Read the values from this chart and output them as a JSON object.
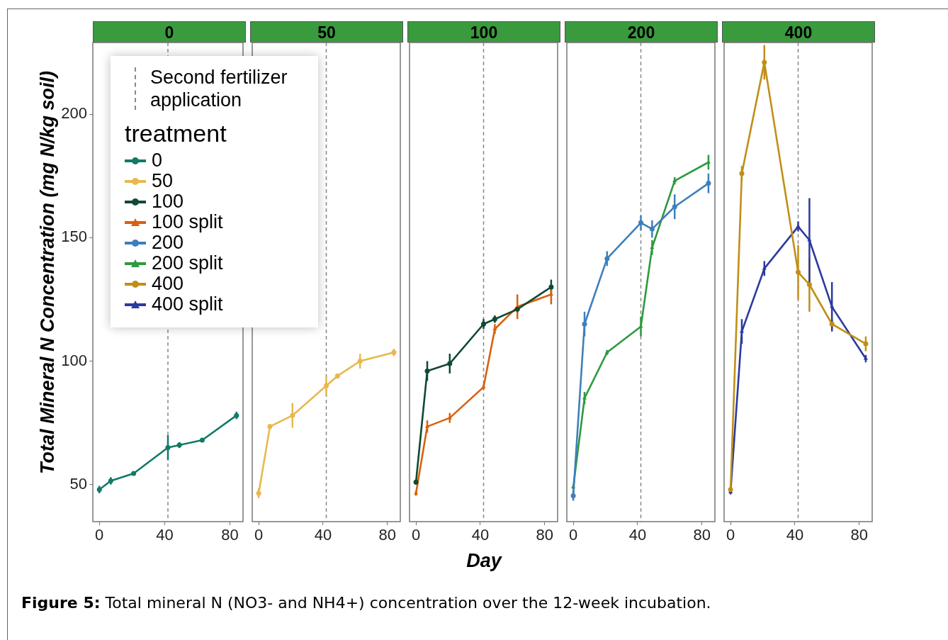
{
  "chart_data": [
    {
      "type": "line",
      "title": "0",
      "ylabel": "Total Mineral N Concentration (mg N/kg soil)",
      "legend_title": "treatment",
      "legend": "top left",
      "x": [
        0,
        7,
        21,
        42,
        49,
        63,
        84
      ],
      "xlim": [
        -4,
        88
      ],
      "xticks": [
        0,
        40,
        80
      ],
      "ylim": [
        35,
        229
      ],
      "yticks": [
        50,
        100,
        150,
        200
      ],
      "grid": false,
      "series": [
        {
          "name": "0",
          "color": "#127a68",
          "marker": "circle",
          "values": [
            48,
            51.5,
            54.5,
            65,
            66,
            68,
            78
          ],
          "errors": [
            1.5,
            1.5,
            0.8,
            5,
            1.2,
            0.8,
            1.5
          ]
        }
      ],
      "ref_lines": [
        {
          "axis": "x",
          "value": 42,
          "label": "Second fertilizer application",
          "line_style": "dashed",
          "color": "#888888"
        }
      ],
      "annotations": [
        "Figure 5: Total mineral N (NO3- and NH4+) concentration over the 12-week incubation."
      ]
    },
    {
      "type": "line",
      "title": "50",
      "tick_labels": "x",
      "legend": "top left",
      "x": [
        0,
        7,
        21,
        42,
        49,
        63,
        84
      ],
      "xlim": [
        -4,
        88
      ],
      "xticks": [
        0,
        40,
        80
      ],
      "ylim": [
        35,
        229
      ],
      "grid": false,
      "series": [
        {
          "name": "50",
          "color": "#e8b84e",
          "marker": "circle",
          "values": [
            46.5,
            73.5,
            78,
            90,
            94,
            100,
            103.5
          ],
          "errors": [
            2,
            1,
            5,
            4,
            1,
            3,
            1.5
          ]
        }
      ],
      "ref_lines": [
        {
          "axis": "x",
          "value": 42,
          "line_style": "dashed",
          "color": "#888888"
        }
      ]
    },
    {
      "type": "line",
      "title": "100",
      "tick_labels": "x",
      "legend": "top left",
      "xlabel": "Day",
      "x": [
        0,
        7,
        21,
        42,
        49,
        63,
        84
      ],
      "xlim": [
        -4,
        88
      ],
      "xticks": [
        0,
        40,
        80
      ],
      "ylim": [
        35,
        229
      ],
      "grid": false,
      "series": [
        {
          "name": "100",
          "color": "#0f4a33",
          "marker": "circle",
          "values": [
            51,
            96,
            99,
            115,
            117,
            121,
            130
          ],
          "errors": [
            1,
            4,
            4,
            2,
            1.5,
            1.5,
            3
          ]
        },
        {
          "name": "100 split",
          "color": "#d9600e",
          "marker": "triangle",
          "values": [
            46.5,
            73.5,
            77,
            89.5,
            113,
            122,
            127
          ],
          "errors": [
            1,
            2.5,
            2,
            1,
            2,
            5,
            4
          ]
        }
      ],
      "ref_lines": [
        {
          "axis": "x",
          "value": 42,
          "line_style": "dashed",
          "color": "#888888"
        }
      ]
    },
    {
      "type": "line",
      "title": "200",
      "tick_labels": "x",
      "legend": "top left",
      "x": [
        0,
        7,
        21,
        42,
        49,
        63,
        84
      ],
      "xlim": [
        -4,
        88
      ],
      "xticks": [
        0,
        40,
        80
      ],
      "ylim": [
        35,
        229
      ],
      "grid": false,
      "series": [
        {
          "name": "200",
          "color": "#3e7fbb",
          "marker": "circle",
          "values": [
            45.5,
            115,
            141.5,
            156,
            153.5,
            162.5,
            172
          ],
          "errors": [
            2,
            5,
            3,
            3,
            3.5,
            5,
            4
          ]
        },
        {
          "name": "200 split",
          "color": "#2e9a3e",
          "marker": "triangle",
          "values": [
            49,
            85,
            103.5,
            114,
            146,
            173,
            180.5
          ],
          "errors": [
            1,
            2.5,
            1,
            4,
            3,
            1.5,
            3
          ]
        }
      ],
      "ref_lines": [
        {
          "axis": "x",
          "value": 42,
          "line_style": "dashed",
          "color": "#888888"
        }
      ]
    },
    {
      "type": "line",
      "title": "400",
      "tick_labels": "x",
      "legend": "left",
      "x": [
        0,
        7,
        21,
        42,
        49,
        63,
        84
      ],
      "xlim": [
        -4,
        88
      ],
      "xticks": [
        0,
        40,
        80
      ],
      "ylim": [
        35,
        229
      ],
      "grid": false,
      "series": [
        {
          "name": "400",
          "color": "#c08f17",
          "marker": "circle",
          "values": [
            48,
            176,
            221,
            136,
            131,
            115,
            107
          ],
          "errors": [
            1,
            3,
            7,
            11,
            11,
            2,
            3
          ]
        },
        {
          "name": "400 split",
          "color": "#2c3a9f",
          "marker": "triangle",
          "values": [
            47,
            112,
            137.5,
            154.5,
            149,
            122,
            101
          ],
          "errors": [
            1,
            5,
            3,
            2,
            17,
            10,
            1.5
          ]
        }
      ],
      "ref_lines": [
        {
          "axis": "x",
          "value": 42,
          "line_style": "dashed",
          "color": "#888888"
        }
      ]
    }
  ]
}
